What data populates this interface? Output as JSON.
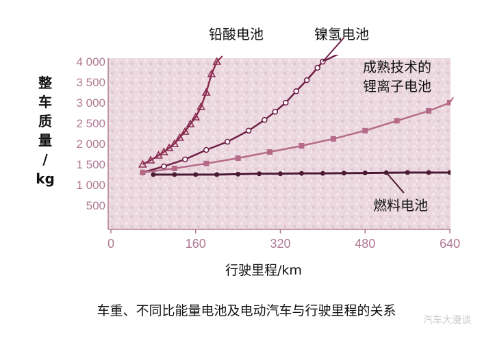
{
  "caption": "车重、不同比能量电池及电动汽车与行驶里程的关系",
  "watermark": "汽车大漫谈",
  "colors": {
    "plot_bg": "#ecd9df",
    "axis": "#b07a92",
    "lead_acid": "#8a2a4f",
    "nimh": "#6e1f45",
    "li_ion": "#b56a88",
    "fuel_cell": "#4a1a33"
  },
  "chart_data": {
    "type": "line",
    "title": "",
    "xlabel": "行驶里程/km",
    "ylabel": [
      "整",
      "车",
      "质",
      "量",
      "/",
      "kg"
    ],
    "xlim": [
      0,
      640
    ],
    "ylim": [
      0,
      4000
    ],
    "x_ticks": [
      0,
      160,
      320,
      480,
      640
    ],
    "x_tick_labels": [
      "0",
      "160",
      "320",
      "480",
      "640"
    ],
    "y_ticks": [
      500,
      1000,
      1500,
      2000,
      2500,
      3000,
      3500,
      4000
    ],
    "y_tick_labels": [
      "500",
      "1 000",
      "1 500",
      "2 000",
      "2 500",
      "3 000",
      "3 500",
      "4 000"
    ],
    "grid": false,
    "series": [
      {
        "name": "铅酸电池",
        "color_key": "lead_acid",
        "marker": "triangle",
        "points": [
          [
            60,
            1500
          ],
          [
            75,
            1600
          ],
          [
            90,
            1720
          ],
          [
            100,
            1800
          ],
          [
            110,
            1900
          ],
          [
            120,
            2000
          ],
          [
            130,
            2150
          ],
          [
            140,
            2300
          ],
          [
            150,
            2480
          ],
          [
            160,
            2650
          ],
          [
            170,
            2900
          ],
          [
            180,
            3250
          ],
          [
            190,
            3700
          ],
          [
            200,
            4000
          ]
        ]
      },
      {
        "name": "镍氢电池",
        "color_key": "nimh",
        "marker": "circle",
        "points": [
          [
            60,
            1300
          ],
          [
            100,
            1450
          ],
          [
            140,
            1620
          ],
          [
            180,
            1850
          ],
          [
            220,
            2050
          ],
          [
            260,
            2320
          ],
          [
            290,
            2580
          ],
          [
            310,
            2780
          ],
          [
            330,
            3000
          ],
          [
            350,
            3280
          ],
          [
            370,
            3550
          ],
          [
            390,
            3850
          ],
          [
            400,
            4000
          ],
          [
            440,
            4250
          ]
        ]
      },
      {
        "name": "成熟技术的锂离子电池",
        "color_key": "li_ion",
        "marker": "square",
        "points": [
          [
            60,
            1300
          ],
          [
            120,
            1400
          ],
          [
            180,
            1520
          ],
          [
            240,
            1650
          ],
          [
            300,
            1800
          ],
          [
            360,
            1950
          ],
          [
            420,
            2120
          ],
          [
            480,
            2320
          ],
          [
            540,
            2560
          ],
          [
            600,
            2800
          ],
          [
            640,
            3000
          ],
          [
            680,
            3250
          ]
        ]
      },
      {
        "name": "燃料电池",
        "color_key": "fuel_cell",
        "marker": "dot",
        "points": [
          [
            80,
            1250
          ],
          [
            120,
            1250
          ],
          [
            160,
            1250
          ],
          [
            200,
            1250
          ],
          [
            240,
            1260
          ],
          [
            280,
            1270
          ],
          [
            320,
            1270
          ],
          [
            360,
            1280
          ],
          [
            400,
            1280
          ],
          [
            440,
            1285
          ],
          [
            480,
            1290
          ],
          [
            520,
            1295
          ],
          [
            560,
            1300
          ],
          [
            600,
            1300
          ],
          [
            640,
            1300
          ]
        ]
      }
    ],
    "annotations": [
      {
        "series": "铅酸电池",
        "lines": [
          "铅酸电池"
        ],
        "anchor": "top"
      },
      {
        "series": "镍氢电池",
        "lines": [
          "镍氢电池"
        ],
        "anchor": "top"
      },
      {
        "series": "成熟技术的锂离子电池",
        "lines": [
          "成熟技术的",
          "锂离子电池"
        ],
        "anchor": "right"
      },
      {
        "series": "燃料电池",
        "lines": [
          "燃料电池"
        ],
        "anchor": "bottom-right"
      }
    ]
  }
}
